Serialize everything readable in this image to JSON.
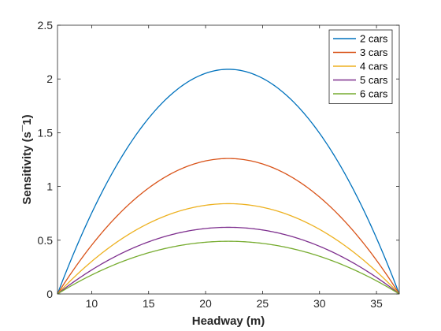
{
  "chart_data": {
    "type": "line",
    "title": "",
    "xlabel": "Headway (m)",
    "ylabel": "Sensitivity (s¯1)",
    "xlim": [
      7,
      37
    ],
    "ylim": [
      0,
      2.5
    ],
    "xticks": [
      10,
      15,
      20,
      25,
      30,
      35
    ],
    "yticks": [
      0,
      0.5,
      1,
      1.5,
      2,
      2.5
    ],
    "ytick_labels": [
      "0",
      "0.5",
      "1",
      "1.5",
      "2",
      "2.5"
    ],
    "grid": false,
    "legend_position": "top-right",
    "x": [
      7,
      8,
      9,
      10,
      11,
      12,
      13,
      14,
      15,
      16,
      17,
      18,
      19,
      20,
      21,
      22,
      23,
      24,
      25,
      26,
      27,
      28,
      29,
      30,
      31,
      32,
      33,
      34,
      35,
      36,
      37
    ],
    "series": [
      {
        "name": "2 cars",
        "color": "#0072BD",
        "peak": 2.09,
        "values": [
          0.0,
          0.27,
          0.52,
          0.75,
          0.97,
          1.16,
          1.34,
          1.49,
          1.63,
          1.75,
          1.84,
          1.92,
          2.0,
          2.05,
          2.08,
          2.09,
          2.08,
          2.05,
          2.0,
          1.92,
          1.84,
          1.75,
          1.63,
          1.49,
          1.34,
          1.16,
          0.97,
          0.75,
          0.52,
          0.27,
          0.0
        ]
      },
      {
        "name": "3 cars",
        "color": "#D95319",
        "peak": 1.26,
        "values": [
          0.0,
          0.16,
          0.31,
          0.45,
          0.58,
          0.7,
          0.81,
          0.9,
          0.98,
          1.05,
          1.11,
          1.16,
          1.2,
          1.23,
          1.25,
          1.26,
          1.25,
          1.23,
          1.2,
          1.16,
          1.11,
          1.05,
          0.98,
          0.9,
          0.81,
          0.7,
          0.58,
          0.45,
          0.31,
          0.16,
          0.0
        ]
      },
      {
        "name": "4 cars",
        "color": "#EDB120",
        "peak": 0.84,
        "values": [
          0.0,
          0.11,
          0.21,
          0.3,
          0.39,
          0.47,
          0.54,
          0.6,
          0.65,
          0.7,
          0.74,
          0.77,
          0.8,
          0.82,
          0.83,
          0.84,
          0.83,
          0.82,
          0.8,
          0.77,
          0.74,
          0.7,
          0.65,
          0.6,
          0.54,
          0.47,
          0.39,
          0.3,
          0.21,
          0.11,
          0.0
        ]
      },
      {
        "name": "5 cars",
        "color": "#7E2F8E",
        "peak": 0.62,
        "values": [
          0.0,
          0.08,
          0.15,
          0.22,
          0.29,
          0.34,
          0.4,
          0.44,
          0.48,
          0.52,
          0.55,
          0.57,
          0.59,
          0.61,
          0.62,
          0.62,
          0.62,
          0.61,
          0.59,
          0.57,
          0.55,
          0.52,
          0.48,
          0.44,
          0.4,
          0.34,
          0.29,
          0.22,
          0.15,
          0.08,
          0.0
        ]
      },
      {
        "name": "6 cars",
        "color": "#77AC30",
        "peak": 0.49,
        "values": [
          0.0,
          0.06,
          0.12,
          0.18,
          0.23,
          0.27,
          0.31,
          0.35,
          0.38,
          0.41,
          0.43,
          0.45,
          0.47,
          0.48,
          0.49,
          0.49,
          0.49,
          0.48,
          0.47,
          0.45,
          0.43,
          0.41,
          0.38,
          0.35,
          0.31,
          0.27,
          0.23,
          0.18,
          0.12,
          0.06,
          0.0
        ]
      }
    ]
  }
}
